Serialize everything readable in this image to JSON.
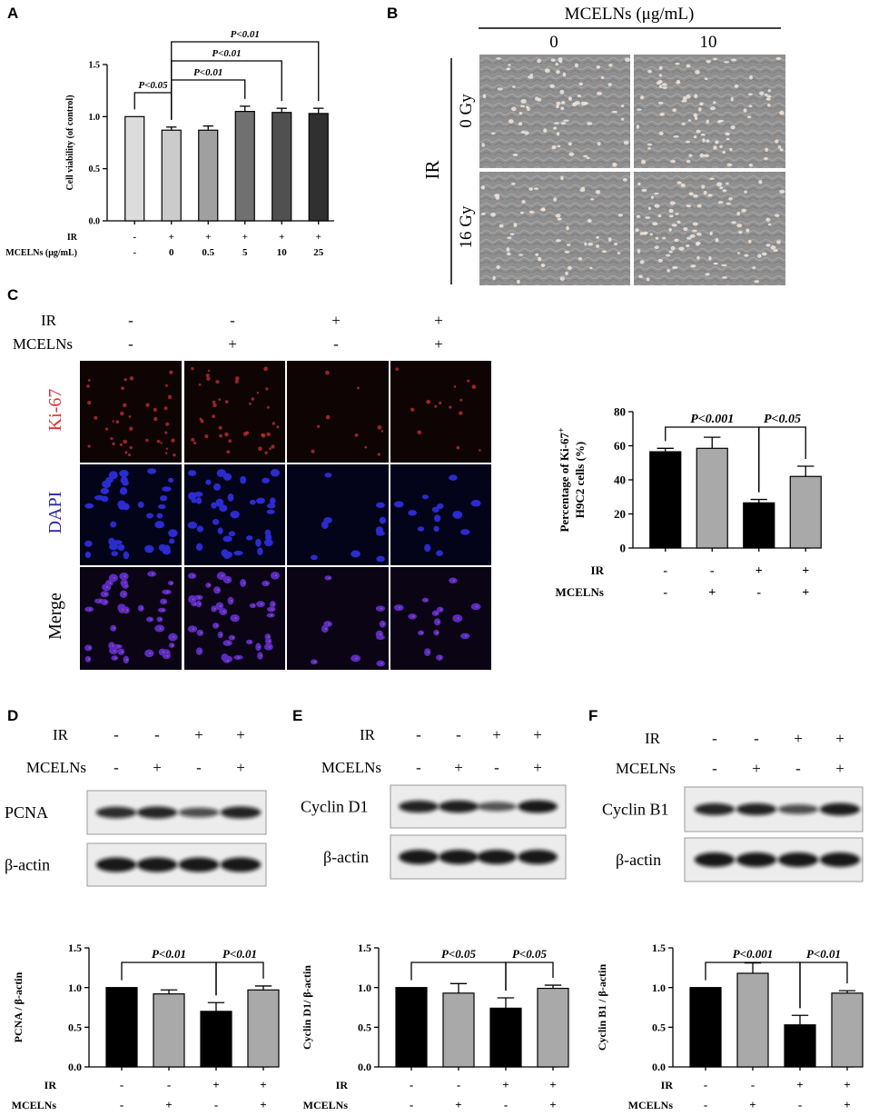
{
  "panels": {
    "A": "A",
    "B": "B",
    "C": "C",
    "D": "D",
    "E": "E",
    "F": "F"
  },
  "colors": {
    "black": "#000000",
    "gray": "#a9a9a9",
    "ki67_red": "#e03030",
    "dapi_blue": "#2a2aa8"
  },
  "panel_b": {
    "header": "MCELNs (μg/mL)",
    "columns": [
      "0",
      "10"
    ],
    "row_group": "IR",
    "rows": [
      "0 Gy",
      "16 Gy"
    ]
  },
  "panel_c": {
    "row_labels": [
      "IR",
      "MCELNs"
    ],
    "ir_signs": [
      "-",
      "-",
      "+",
      "+"
    ],
    "mcelns_signs": [
      "-",
      "+",
      "-",
      "+"
    ],
    "image_rows": [
      "Ki-67",
      "DAPI",
      "Merge"
    ]
  },
  "blots": {
    "D": {
      "ir_label": "IR",
      "mcelns_label": "MCELNs",
      "ir_signs": [
        "-",
        "-",
        "+",
        "+"
      ],
      "mcelns_signs": [
        "-",
        "+",
        "-",
        "+"
      ],
      "target": "PCNA",
      "control": "β-actin",
      "bands": [
        0.85,
        0.9,
        0.6,
        0.92
      ]
    },
    "E": {
      "ir_label": "IR",
      "mcelns_label": "MCELNs",
      "ir_signs": [
        "-",
        "-",
        "+",
        "+"
      ],
      "mcelns_signs": [
        "-",
        "+",
        "-",
        "+"
      ],
      "target": "Cyclin D1",
      "control": "β-actin",
      "bands": [
        0.92,
        0.95,
        0.55,
        1.0
      ]
    },
    "F": {
      "ir_label": "IR",
      "mcelns_label": "MCELNs",
      "ir_signs": [
        "-",
        "-",
        "+",
        "+"
      ],
      "mcelns_signs": [
        "-",
        "+",
        "-",
        "+"
      ],
      "target": "Cyclin B1",
      "control": "β-actin",
      "bands": [
        0.9,
        0.92,
        0.6,
        0.97
      ]
    }
  },
  "chart_data": [
    {
      "id": "A",
      "type": "bar",
      "ylabel": "Cell viability (of control)",
      "ylim": [
        0,
        1.5
      ],
      "yticks": [
        "0.0",
        "0.5",
        "1.0",
        "1.5"
      ],
      "row_labels": [
        "IR",
        "MCELNs (μg/mL)"
      ],
      "ir_signs": [
        "-",
        "+",
        "+",
        "+",
        "+",
        "+"
      ],
      "mcelns_values": [
        "-",
        "0",
        "0.5",
        "5",
        "10",
        "25"
      ],
      "values": [
        1.0,
        0.87,
        0.87,
        1.05,
        1.04,
        1.03
      ],
      "errors": [
        0.0,
        0.03,
        0.04,
        0.05,
        0.04,
        0.05
      ],
      "colors": [
        "#dcdcdc",
        "#cbcbcb",
        "#a0a0a0",
        "#707070",
        "#505050",
        "#303030"
      ],
      "annotations": [
        {
          "text": "P<0.05",
          "from": 0,
          "to": 1
        },
        {
          "text": "P<0.01",
          "from": 1,
          "to": 3
        },
        {
          "text": "P<0.01",
          "from": 1,
          "to": 4
        },
        {
          "text": "P<0.01",
          "from": 1,
          "to": 5
        }
      ]
    },
    {
      "id": "C",
      "type": "bar",
      "ylabel_line1": "Percentage of Ki-67",
      "ylabel_sup": "+",
      "ylabel_line2": "H9C2 cells (%)",
      "ylim": [
        0,
        80
      ],
      "yticks": [
        "0",
        "20",
        "40",
        "60",
        "80"
      ],
      "row_labels": [
        "IR",
        "MCELNs"
      ],
      "ir_signs": [
        "-",
        "-",
        "+",
        "+"
      ],
      "mcelns_signs": [
        "-",
        "+",
        "-",
        "+"
      ],
      "values": [
        56.5,
        58.5,
        26.5,
        42
      ],
      "errors": [
        2,
        6.5,
        2,
        6
      ],
      "colors": [
        "#000000",
        "#a9a9a9",
        "#000000",
        "#a9a9a9"
      ],
      "annotations": [
        {
          "text": "P<0.001",
          "from": 0,
          "to": 2
        },
        {
          "text": "P<0.05",
          "from": 2,
          "to": 3
        }
      ]
    },
    {
      "id": "D",
      "type": "bar",
      "ylabel": "PCNA / β-actin",
      "ylim": [
        0,
        1.5
      ],
      "yticks": [
        "0.0",
        "0.5",
        "1.0",
        "1.5"
      ],
      "row_labels": [
        "IR",
        "MCELNs"
      ],
      "ir_signs": [
        "-",
        "-",
        "+",
        "+"
      ],
      "mcelns_signs": [
        "-",
        "+",
        "-",
        "+"
      ],
      "values": [
        1.0,
        0.92,
        0.7,
        0.97
      ],
      "errors": [
        0.0,
        0.05,
        0.11,
        0.05
      ],
      "colors": [
        "#000000",
        "#a9a9a9",
        "#000000",
        "#a9a9a9"
      ],
      "annotations": [
        {
          "text": "P<0.01",
          "from": 0,
          "to": 2
        },
        {
          "text": "P<0.01",
          "from": 2,
          "to": 3
        }
      ]
    },
    {
      "id": "E",
      "type": "bar",
      "ylabel": "Cyclin D1/ β-actin",
      "ylim": [
        0,
        1.5
      ],
      "yticks": [
        "0.0",
        "0.5",
        "1.0",
        "1.5"
      ],
      "row_labels": [
        "IR",
        "MCELNs"
      ],
      "ir_signs": [
        "-",
        "-",
        "+",
        "+"
      ],
      "mcelns_signs": [
        "-",
        "+",
        "-",
        "+"
      ],
      "values": [
        1.0,
        0.93,
        0.74,
        0.99
      ],
      "errors": [
        0.0,
        0.12,
        0.13,
        0.04
      ],
      "colors": [
        "#000000",
        "#a9a9a9",
        "#000000",
        "#a9a9a9"
      ],
      "annotations": [
        {
          "text": "P<0.05",
          "from": 0,
          "to": 2
        },
        {
          "text": "P<0.05",
          "from": 2,
          "to": 3
        }
      ]
    },
    {
      "id": "F",
      "type": "bar",
      "ylabel": "Cyclin B1 / β-actin",
      "ylim": [
        0,
        1.5
      ],
      "yticks": [
        "0.0",
        "0.5",
        "1.0",
        "1.5"
      ],
      "row_labels": [
        "IR",
        "MCELNs"
      ],
      "ir_signs": [
        "-",
        "-",
        "+",
        "+"
      ],
      "mcelns_signs": [
        "-",
        "+",
        "-",
        "+"
      ],
      "values": [
        1.0,
        1.18,
        0.53,
        0.93
      ],
      "errors": [
        0.0,
        0.13,
        0.12,
        0.03
      ],
      "colors": [
        "#000000",
        "#a9a9a9",
        "#000000",
        "#a9a9a9"
      ],
      "annotations": [
        {
          "text": "P<0.001",
          "from": 0,
          "to": 2
        },
        {
          "text": "P<0.01",
          "from": 2,
          "to": 3
        }
      ]
    }
  ]
}
